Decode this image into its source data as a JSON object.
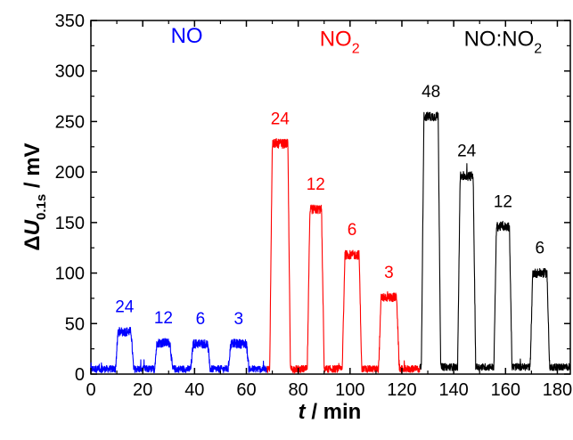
{
  "chart_data": {
    "type": "line",
    "xlabel": {
      "italic": "t",
      "rest": " / min"
    },
    "ylabel": {
      "delta": "Δ",
      "italic": "U",
      "sub": "0.1s",
      "rest": " / mV"
    },
    "xlim": [
      0,
      185
    ],
    "ylim": [
      0,
      350
    ],
    "xticks": [
      0,
      20,
      40,
      60,
      80,
      100,
      120,
      140,
      160,
      180
    ],
    "yticks": [
      0,
      50,
      100,
      150,
      200,
      250,
      300,
      350
    ],
    "grid": false,
    "colors": {
      "NO": "#0000ff",
      "NO2": "#ff0000",
      "mix": "#000000"
    },
    "group_labels": [
      {
        "series": "NO",
        "text": "NO",
        "sub": "",
        "text2": "",
        "sub2": "",
        "x": 37,
        "y": 328
      },
      {
        "series": "NO2",
        "text": "NO",
        "sub": "2",
        "text2": "",
        "sub2": "",
        "x": 96,
        "y": 325
      },
      {
        "series": "mix",
        "text": "NO:NO",
        "sub": "2",
        "text2": "",
        "sub2": "",
        "x": 159,
        "y": 325
      }
    ],
    "series": [
      {
        "key": "NO",
        "color": "#0000ff",
        "x_start": 0,
        "x_end": 68,
        "baseline": 5,
        "pulses": [
          {
            "label": "24",
            "start": 9.5,
            "end": 16.5,
            "level": 42
          },
          {
            "label": "12",
            "start": 24.5,
            "end": 31.5,
            "level": 31
          },
          {
            "label": "6",
            "start": 38.5,
            "end": 46,
            "level": 30
          },
          {
            "label": "3",
            "start": 53,
            "end": 61,
            "level": 30
          }
        ]
      },
      {
        "key": "NO2",
        "color": "#ff0000",
        "x_start": 68,
        "x_end": 127,
        "baseline": 5,
        "pulses": [
          {
            "label": "24",
            "start": 69,
            "end": 77,
            "level": 228
          },
          {
            "label": "12",
            "start": 83.5,
            "end": 90,
            "level": 163
          },
          {
            "label": "6",
            "start": 97,
            "end": 104.5,
            "level": 118
          },
          {
            "label": "3",
            "start": 111,
            "end": 119,
            "level": 76
          }
        ]
      },
      {
        "key": "mix",
        "color": "#000000",
        "x_start": 127,
        "x_end": 185,
        "baseline": 7,
        "pulses": [
          {
            "label": "48",
            "start": 127.5,
            "end": 135,
            "level": 255
          },
          {
            "label": "24",
            "start": 141.5,
            "end": 148.5,
            "level": 196
          },
          {
            "label": "12",
            "start": 155.5,
            "end": 162.5,
            "level": 146
          },
          {
            "label": "6",
            "start": 169.5,
            "end": 177,
            "level": 100
          }
        ]
      }
    ]
  }
}
